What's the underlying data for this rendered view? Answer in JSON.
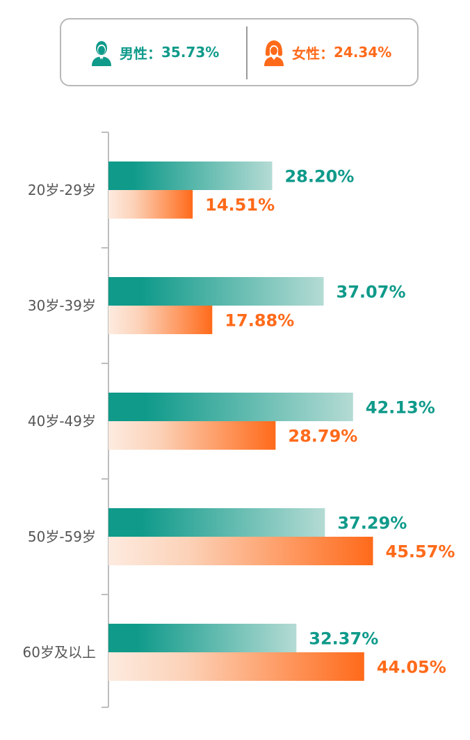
{
  "legend": {
    "male": {
      "label": "男性",
      "separator": "：",
      "value": "35.73%",
      "icon": "male-person-icon",
      "color": "#0f9a8a"
    },
    "female": {
      "label": "女性",
      "separator": "：",
      "value": "24.34%",
      "icon": "female-person-icon",
      "color": "#ff6a1a"
    }
  },
  "chart_data": {
    "type": "bar",
    "orientation": "horizontal",
    "categories": [
      "20岁-29岁",
      "30岁-39岁",
      "40岁-49岁",
      "50岁-59岁",
      "60岁及以上"
    ],
    "series": [
      {
        "key": "male",
        "values": [
          28.2,
          37.07,
          42.13,
          37.29,
          32.37
        ],
        "labels": [
          "28.20%",
          "37.07%",
          "42.13%",
          "37.29%",
          "32.37%"
        ],
        "color": "#0f9a8a"
      },
      {
        "key": "female",
        "values": [
          14.51,
          17.88,
          28.79,
          45.57,
          44.05
        ],
        "labels": [
          "14.51%",
          "17.88%",
          "28.79%",
          "45.57%",
          "44.05%"
        ],
        "color": "#ff6a1a"
      }
    ],
    "xlim": [
      0,
      50
    ],
    "grid": false,
    "legend_position": "top"
  }
}
